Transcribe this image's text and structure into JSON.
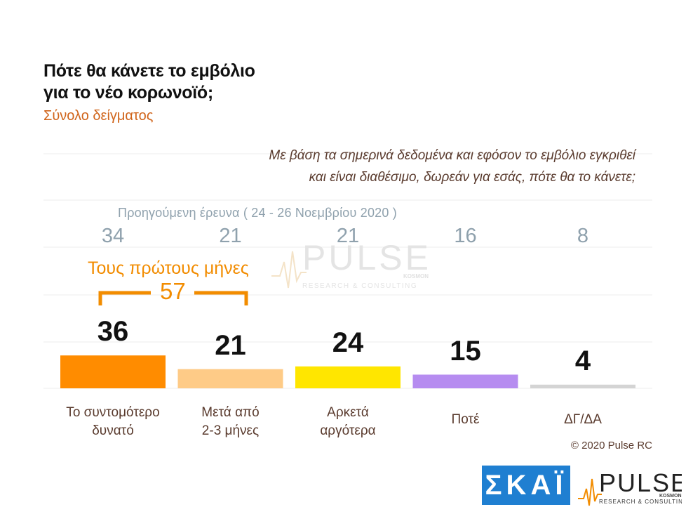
{
  "title_line1": "Πότε θα κάνετε το εμβόλιο",
  "title_line2": "για το νέο κορωνοϊό;",
  "subtitle": "Σύνολο δείγματος",
  "question_line1": "Με βάση τα σημερινά δεδομένα και εφόσον το εμβόλιο εγκριθεί",
  "question_line2": "και είναι διαθέσιμο, δωρεάν για εσάς, πότε θα το κάνετε;",
  "previous_label": "Προηγούμενη έρευνα  ( 24 - 26  Νοεμβρίου  2020 )",
  "bracket_label": "Τους πρώτους μήνες",
  "bracket_value": "57",
  "copyright": "© 2020 Pulse RC",
  "logos": {
    "skai": "ΣΚΑΪ",
    "pulse": "PULSE",
    "pulse_sub": "RESEARCH & CONSULTING",
    "pulse_kosmon": "KOSMON"
  },
  "chart_data": {
    "type": "bar",
    "categories": [
      [
        "Το συντομότερο",
        "δυνατό"
      ],
      [
        "Μετά από",
        "2-3 μήνες"
      ],
      [
        "Αρκετά",
        "αργότερα"
      ],
      [
        "Ποτέ",
        ""
      ],
      [
        "ΔΓ/ΔΑ",
        ""
      ]
    ],
    "values": [
      36,
      21,
      24,
      15,
      4
    ],
    "previous_values": [
      34,
      21,
      21,
      16,
      8
    ],
    "colors": [
      "#ff8c00",
      "#fecb87",
      "#ffe600",
      "#b68cf0",
      "#d4d4d4"
    ],
    "ylim": [
      0,
      100
    ],
    "grid": true
  }
}
